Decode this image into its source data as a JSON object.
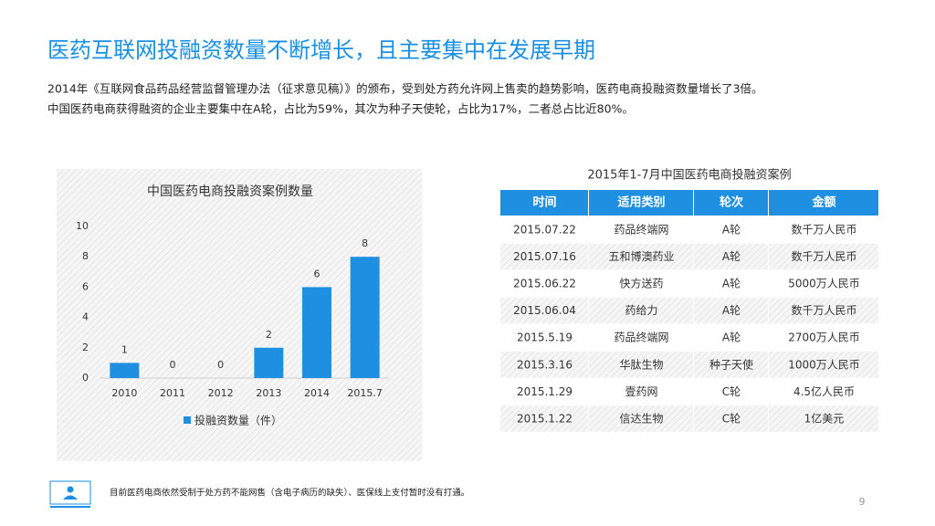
{
  "title": "医药互联网投融资数量不断增长，且主要集中在发展早期",
  "paragraphs": [
    "2014年《互联网食品药品经营监督管理办法（征求意见稿）》的颁布，受到处方药允许网上售卖的趋势影响，医药电商投融资数量增长了3倍。",
    "中国医药电商获得融资的企业主要集中在A轮，占比为59%，其次为种子天使轮，占比为17%，二者总占比近80%。"
  ],
  "chart_data": {
    "type": "bar",
    "title": "中国医药电商投融资案例数量",
    "categories": [
      "2010",
      "2011",
      "2012",
      "2013",
      "2014",
      "2015.7"
    ],
    "series": [
      {
        "name": "投融资数量（件）",
        "color": "#1e8fe1",
        "values": [
          1,
          0,
          0,
          2,
          6,
          8
        ]
      }
    ],
    "ylim": [
      0,
      10
    ],
    "yticks": [
      0,
      2,
      4,
      6,
      8,
      10
    ],
    "grid": false
  },
  "table": {
    "title": "2015年1-7月中国医药电商投融资案例",
    "header": [
      "时间",
      "适用类别",
      "轮次",
      "金额"
    ],
    "rows": [
      [
        "2015.07.22",
        "药品终端网",
        "A轮",
        "数千万人民币"
      ],
      [
        "2015.07.16",
        "五和博澳药业",
        "A轮",
        "数千万人民币"
      ],
      [
        "2015.06.22",
        "快方送药",
        "A轮",
        "5000万人民币"
      ],
      [
        "2015.06.04",
        "药给力",
        "A轮",
        "数千万人民币"
      ],
      [
        "2015.5.19",
        "药品终端网",
        "A轮",
        "2700万人民币"
      ],
      [
        "2015.3.16",
        "华肽生物",
        "种子天使",
        "1000万人民币"
      ],
      [
        "2015.1.29",
        "壹药网",
        "C轮",
        "4.5亿人民币"
      ],
      [
        "2015.1.22",
        "信达生物",
        "C轮",
        "1亿美元"
      ]
    ]
  },
  "footnote": "目前医药电商依然受制于处方药不能网售（含电子病历的缺失）、医保线上支付暂时没有打通。",
  "page_number": 9
}
